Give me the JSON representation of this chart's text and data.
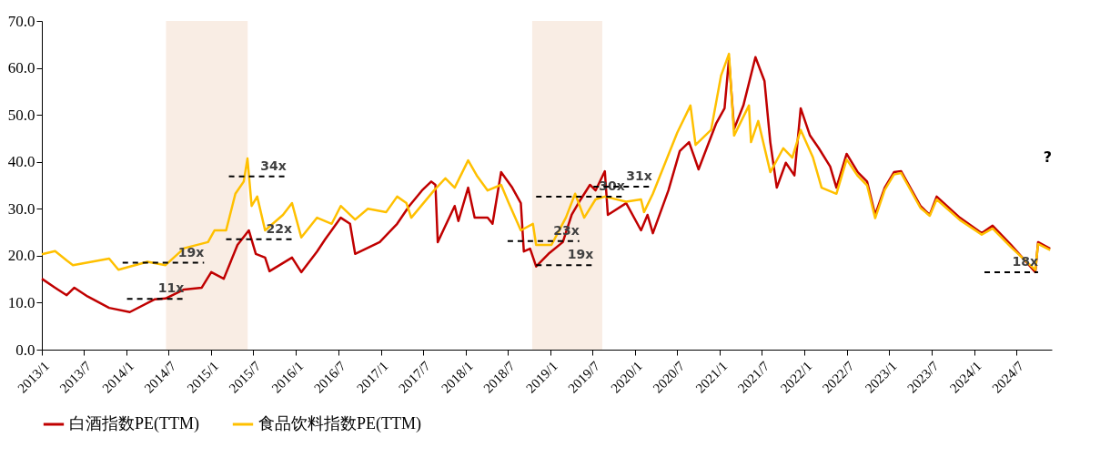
{
  "chart_data": {
    "type": "line",
    "xlim": [
      "2013-01-01",
      "2024-12-01"
    ],
    "ylim": [
      0,
      70
    ],
    "yticks": [
      {
        "value": 0,
        "label": "0.0"
      },
      {
        "value": 10,
        "label": "10.0"
      },
      {
        "value": 20,
        "label": "20.0"
      },
      {
        "value": 30,
        "label": "30.0"
      },
      {
        "value": 40,
        "label": "40.0"
      },
      {
        "value": 50,
        "label": "50.0"
      },
      {
        "value": 60,
        "label": "60.0"
      },
      {
        "value": 70,
        "label": "70.0"
      }
    ],
    "xticks": [
      {
        "value": "2013-01-01",
        "label": "2013/1"
      },
      {
        "value": "2013-07-01",
        "label": "2013/7"
      },
      {
        "value": "2014-01-01",
        "label": "2014/1"
      },
      {
        "value": "2014-07-01",
        "label": "2014/7"
      },
      {
        "value": "2015-01-01",
        "label": "2015/1"
      },
      {
        "value": "2015-07-01",
        "label": "2015/7"
      },
      {
        "value": "2016-01-01",
        "label": "2016/1"
      },
      {
        "value": "2016-07-01",
        "label": "2016/7"
      },
      {
        "value": "2017-01-01",
        "label": "2017/1"
      },
      {
        "value": "2017-07-01",
        "label": "2017/7"
      },
      {
        "value": "2018-01-01",
        "label": "2018/1"
      },
      {
        "value": "2018-07-01",
        "label": "2018/7"
      },
      {
        "value": "2019-01-01",
        "label": "2019/1"
      },
      {
        "value": "2019-07-01",
        "label": "2019/7"
      },
      {
        "value": "2020-01-01",
        "label": "2020/1"
      },
      {
        "value": "2020-07-01",
        "label": "2020/7"
      },
      {
        "value": "2021-01-01",
        "label": "2021/1"
      },
      {
        "value": "2021-07-01",
        "label": "2021/7"
      },
      {
        "value": "2022-01-01",
        "label": "2022/1"
      },
      {
        "value": "2022-07-01",
        "label": "2022/7"
      },
      {
        "value": "2023-01-01",
        "label": "2023/1"
      },
      {
        "value": "2023-07-01",
        "label": "2023/7"
      },
      {
        "value": "2024-01-01",
        "label": "2024/1"
      },
      {
        "value": "2024-07-01",
        "label": "2024/7"
      }
    ],
    "grid": false,
    "legend": "bottom",
    "bands": [
      {
        "axis": "x",
        "from": "2014-06-20",
        "to": "2015-06-07",
        "color": "#f9ede4"
      },
      {
        "axis": "x",
        "from": "2018-10-15",
        "to": "2019-08-13",
        "color": "#f9ede4"
      }
    ],
    "series": [
      {
        "name": "白酒指数PE(TTM)",
        "color": "#c00000",
        "line_style": "solid",
        "x": [
          "2013-01-01",
          "2013-02-27",
          "2013-04-18",
          "2013-05-21",
          "2013-07-18",
          "2013-10-18",
          "2014-01-15",
          "2014-05-01",
          "2014-06-18",
          "2014-09-06",
          "2014-11-21",
          "2015-01-01",
          "2015-02-24",
          "2015-04-24",
          "2015-06-12",
          "2015-07-12",
          "2015-08-21",
          "2015-09-09",
          "2015-12-15",
          "2016-01-24",
          "2016-04-01",
          "2016-05-06",
          "2016-07-12",
          "2016-08-21",
          "2016-09-12",
          "2016-12-27",
          "2017-03-12",
          "2017-05-03",
          "2017-06-27",
          "2017-08-06",
          "2017-08-24",
          "2017-09-03",
          "2017-11-15",
          "2017-12-01",
          "2018-01-12",
          "2018-02-09",
          "2018-04-06",
          "2018-04-27",
          "2018-06-03",
          "2018-07-21",
          "2018-08-27",
          "2018-09-09",
          "2018-10-06",
          "2018-11-01",
          "2018-12-24",
          "2019-02-24",
          "2019-04-03",
          "2019-05-12",
          "2019-06-21",
          "2019-07-15",
          "2019-08-24",
          "2019-09-06",
          "2019-11-24",
          "2020-01-27",
          "2020-02-24",
          "2020-03-18",
          "2020-05-24",
          "2020-07-12",
          "2020-08-21",
          "2020-10-01",
          "2020-12-15",
          "2021-01-21",
          "2021-02-09",
          "2021-03-03",
          "2021-04-12",
          "2021-06-03",
          "2021-07-12",
          "2021-08-06",
          "2021-09-03",
          "2021-10-12",
          "2021-11-18",
          "2021-12-15",
          "2022-01-24",
          "2022-03-03",
          "2022-04-21",
          "2022-05-18",
          "2022-07-01",
          "2022-08-18",
          "2022-09-27",
          "2022-11-01",
          "2022-12-12",
          "2023-01-21",
          "2023-02-21",
          "2023-05-15",
          "2023-06-24",
          "2023-07-24",
          "2023-11-01",
          "2024-02-03",
          "2024-03-21",
          "2024-06-09",
          "2024-09-21",
          "2024-10-03",
          "2024-11-24"
        ],
        "values": [
          15.1,
          13.2,
          11.6,
          13.2,
          11.3,
          8.9,
          8,
          10.7,
          10.9,
          12.8,
          13.2,
          16.5,
          15.1,
          22.3,
          25.4,
          20.4,
          19.6,
          16.7,
          19.6,
          16.5,
          20.9,
          23.5,
          28.1,
          26.8,
          20.4,
          22.9,
          26.8,
          30.6,
          33.9,
          35.8,
          35.1,
          22.9,
          30.6,
          27.4,
          34.5,
          28.1,
          28.1,
          26.8,
          37.8,
          34.5,
          31.2,
          20.9,
          21.5,
          17.7,
          20.4,
          22.9,
          28.7,
          32,
          35.1,
          33.9,
          38,
          28.7,
          31.2,
          25.4,
          28.7,
          24.8,
          33.9,
          42.3,
          44.2,
          38.4,
          48.1,
          51.4,
          62,
          47,
          52,
          62.3,
          57.2,
          44.2,
          34.5,
          39.8,
          37.1,
          51.4,
          45.6,
          42.9,
          39,
          34.5,
          41.7,
          37.8,
          35.8,
          28.7,
          34.5,
          37.8,
          38,
          30.6,
          28.7,
          32.6,
          28.1,
          24.8,
          26.4,
          22.3,
          16.5,
          22.9,
          21.5
        ]
      },
      {
        "name": "食品饮料指数PE(TTM)",
        "color": "#ffc000",
        "line_style": "solid",
        "x": [
          "2013-01-01",
          "2013-02-27",
          "2013-04-18",
          "2013-05-15",
          "2013-10-18",
          "2013-11-27",
          "2014-04-01",
          "2014-06-18",
          "2014-09-06",
          "2014-12-18",
          "2015-01-15",
          "2015-03-06",
          "2015-04-15",
          "2015-05-21",
          "2015-06-06",
          "2015-06-24",
          "2015-07-18",
          "2015-08-21",
          "2015-11-06",
          "2015-12-15",
          "2016-01-24",
          "2016-04-01",
          "2016-06-03",
          "2016-07-12",
          "2016-09-12",
          "2016-11-06",
          "2017-01-24",
          "2017-03-12",
          "2017-04-21",
          "2017-05-12",
          "2017-08-18",
          "2017-10-06",
          "2017-11-15",
          "2018-01-12",
          "2018-02-18",
          "2018-04-06",
          "2018-06-03",
          "2018-07-06",
          "2018-08-27",
          "2018-10-18",
          "2018-11-01",
          "2019-01-06",
          "2019-03-09",
          "2019-04-18",
          "2019-05-27",
          "2019-07-15",
          "2019-08-24",
          "2019-11-24",
          "2020-01-27",
          "2020-02-09",
          "2020-03-18",
          "2020-07-01",
          "2020-08-27",
          "2020-09-18",
          "2020-11-24",
          "2021-01-06",
          "2021-02-09",
          "2021-03-03",
          "2021-05-06",
          "2021-05-15",
          "2021-06-15",
          "2021-08-06",
          "2021-10-01",
          "2021-11-09",
          "2021-12-15",
          "2022-02-06",
          "2022-03-15",
          "2022-05-18",
          "2022-07-01",
          "2022-08-18",
          "2022-09-27",
          "2022-11-01",
          "2022-12-12",
          "2023-01-21",
          "2023-02-21",
          "2023-05-15",
          "2023-06-24",
          "2023-07-24",
          "2023-11-01",
          "2024-02-03",
          "2024-03-21",
          "2024-06-09",
          "2024-09-21",
          "2024-10-03",
          "2024-11-24"
        ],
        "values": [
          20.3,
          21,
          19,
          18,
          19.4,
          17,
          18.7,
          18,
          21.6,
          22.9,
          25.4,
          25.4,
          33.2,
          35.8,
          40.7,
          30.6,
          32.6,
          25.4,
          28.7,
          31.2,
          23.9,
          28.1,
          26.8,
          30.6,
          27.7,
          30,
          29.3,
          32.6,
          31.2,
          28.1,
          33.9,
          36.5,
          34.5,
          40.3,
          37.1,
          33.9,
          35.1,
          31.2,
          25.4,
          26.8,
          22.3,
          22.3,
          28.1,
          33.2,
          28.1,
          32,
          32.6,
          31.5,
          32,
          29.3,
          33.2,
          46.2,
          52,
          43.6,
          46.8,
          58.4,
          63,
          45.6,
          52,
          44.2,
          48.7,
          37.8,
          42.9,
          40.9,
          46.8,
          40.9,
          34.5,
          33.2,
          40.5,
          37,
          35,
          28,
          34,
          37.3,
          37.6,
          30.2,
          28.5,
          32,
          27.6,
          24.5,
          25.8,
          21.8,
          17,
          22.5,
          21.2
        ]
      },
      {
        "name": "19x",
        "type": "line",
        "line_style": "dashed",
        "color": "#000000",
        "x": [
          "2013-12-15",
          "2014-12-01"
        ],
        "values": [
          18.5,
          18.5
        ]
      },
      {
        "name": "11x",
        "type": "line",
        "line_style": "dashed",
        "color": "#000000",
        "x": [
          "2014-01-03",
          "2014-09-06"
        ],
        "values": [
          10.8,
          10.8
        ]
      },
      {
        "name": "34x",
        "type": "line",
        "line_style": "dashed",
        "color": "#000000",
        "x": [
          "2015-03-18",
          "2015-11-21"
        ],
        "values": [
          36.9,
          36.9
        ]
      },
      {
        "name": "22x",
        "type": "line",
        "line_style": "dashed",
        "color": "#000000",
        "x": [
          "2015-03-06",
          "2015-12-15"
        ],
        "values": [
          23.5,
          23.5
        ]
      },
      {
        "name": "23x",
        "type": "line",
        "line_style": "dashed",
        "color": "#000000",
        "x": [
          "2018-07-01",
          "2019-05-06"
        ],
        "values": [
          23.1,
          23.1
        ]
      },
      {
        "name": "30x",
        "type": "line",
        "line_style": "dashed",
        "color": "#000000",
        "x": [
          "2018-11-01",
          "2019-11-18"
        ],
        "values": [
          32.6,
          32.6
        ]
      },
      {
        "name": "19x",
        "type": "line",
        "line_style": "dashed",
        "color": "#000000",
        "x": [
          "2018-11-01",
          "2019-07-06"
        ],
        "values": [
          18,
          18
        ]
      },
      {
        "name": "31x",
        "type": "line",
        "line_style": "dashed",
        "color": "#000000",
        "x": [
          "2019-07-06",
          "2020-03-15"
        ],
        "values": [
          34.7,
          34.7
        ]
      },
      {
        "name": "18x",
        "type": "line",
        "line_style": "dashed",
        "color": "#000000",
        "x": [
          "2024-02-15",
          "2024-10-03"
        ],
        "values": [
          16.5,
          16.5
        ]
      }
    ],
    "annotations": [
      "?"
    ]
  }
}
